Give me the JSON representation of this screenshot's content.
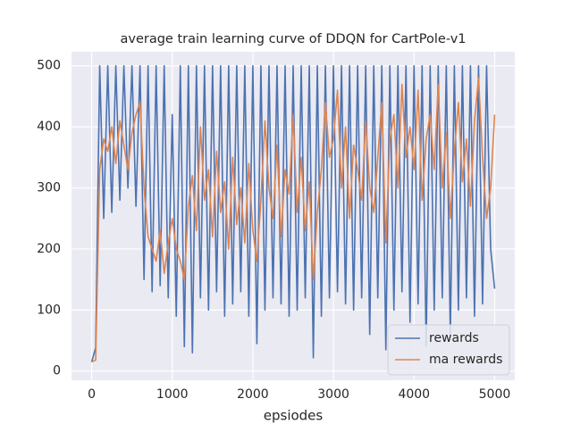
{
  "chart_data": {
    "type": "line",
    "title": "average train learning curve of DDQN for CartPole-v1",
    "xlabel": "epsiodes",
    "x": [
      0,
      50,
      100,
      150,
      200,
      250,
      300,
      350,
      400,
      450,
      500,
      550,
      600,
      650,
      700,
      750,
      800,
      850,
      900,
      950,
      1000,
      1050,
      1100,
      1150,
      1200,
      1250,
      1300,
      1350,
      1400,
      1450,
      1500,
      1550,
      1600,
      1650,
      1700,
      1750,
      1800,
      1850,
      1900,
      1950,
      2000,
      2050,
      2100,
      2150,
      2200,
      2250,
      2300,
      2350,
      2400,
      2450,
      2500,
      2550,
      2600,
      2650,
      2700,
      2750,
      2800,
      2850,
      2900,
      2950,
      3000,
      3050,
      3100,
      3150,
      3200,
      3250,
      3300,
      3350,
      3400,
      3450,
      3500,
      3550,
      3600,
      3650,
      3700,
      3750,
      3800,
      3850,
      3900,
      3950,
      4000,
      4050,
      4100,
      4150,
      4200,
      4250,
      4300,
      4350,
      4400,
      4450,
      4500,
      4550,
      4600,
      4650,
      4700,
      4750,
      4800,
      4850,
      4900,
      4950,
      5000
    ],
    "series": [
      {
        "name": "rewards",
        "color": "#4c72b0",
        "values": [
          15,
          38,
          500,
          250,
          500,
          260,
          500,
          280,
          500,
          300,
          500,
          270,
          500,
          150,
          500,
          130,
          500,
          140,
          500,
          120,
          420,
          90,
          500,
          40,
          500,
          30,
          500,
          120,
          500,
          100,
          500,
          130,
          500,
          90,
          500,
          110,
          500,
          130,
          500,
          90,
          500,
          45,
          500,
          100,
          500,
          120,
          500,
          110,
          500,
          90,
          500,
          100,
          500,
          120,
          500,
          22,
          500,
          90,
          500,
          120,
          500,
          130,
          500,
          110,
          500,
          100,
          500,
          120,
          500,
          60,
          500,
          120,
          500,
          35,
          500,
          100,
          500,
          130,
          500,
          80,
          500,
          110,
          500,
          40,
          500,
          100,
          500,
          120,
          500,
          60,
          500,
          100,
          500,
          120,
          500,
          90,
          500,
          110,
          500,
          200,
          135
        ]
      },
      {
        "name": "ma rewards",
        "color": "#dd8452",
        "values": [
          15,
          18,
          330,
          380,
          360,
          400,
          340,
          410,
          370,
          330,
          390,
          420,
          440,
          300,
          220,
          200,
          180,
          230,
          160,
          210,
          250,
          200,
          180,
          150,
          270,
          320,
          230,
          400,
          280,
          330,
          220,
          360,
          260,
          310,
          200,
          350,
          240,
          300,
          210,
          340,
          230,
          180,
          280,
          410,
          300,
          250,
          370,
          220,
          330,
          290,
          420,
          260,
          350,
          230,
          310,
          150,
          260,
          330,
          440,
          350,
          380,
          460,
          300,
          400,
          250,
          370,
          330,
          280,
          410,
          300,
          260,
          350,
          440,
          210,
          380,
          420,
          300,
          470,
          350,
          400,
          330,
          460,
          280,
          380,
          420,
          330,
          470,
          300,
          390,
          250,
          360,
          440,
          310,
          380,
          270,
          410,
          480,
          350,
          250,
          300,
          420
        ]
      }
    ],
    "xlim": [
      -250,
      5250
    ],
    "ylim": [
      -15,
      523
    ],
    "xticks": [
      0,
      1000,
      2000,
      3000,
      4000,
      5000
    ],
    "yticks": [
      0,
      100,
      200,
      300,
      400,
      500
    ],
    "grid": true,
    "legend": "lower right"
  }
}
